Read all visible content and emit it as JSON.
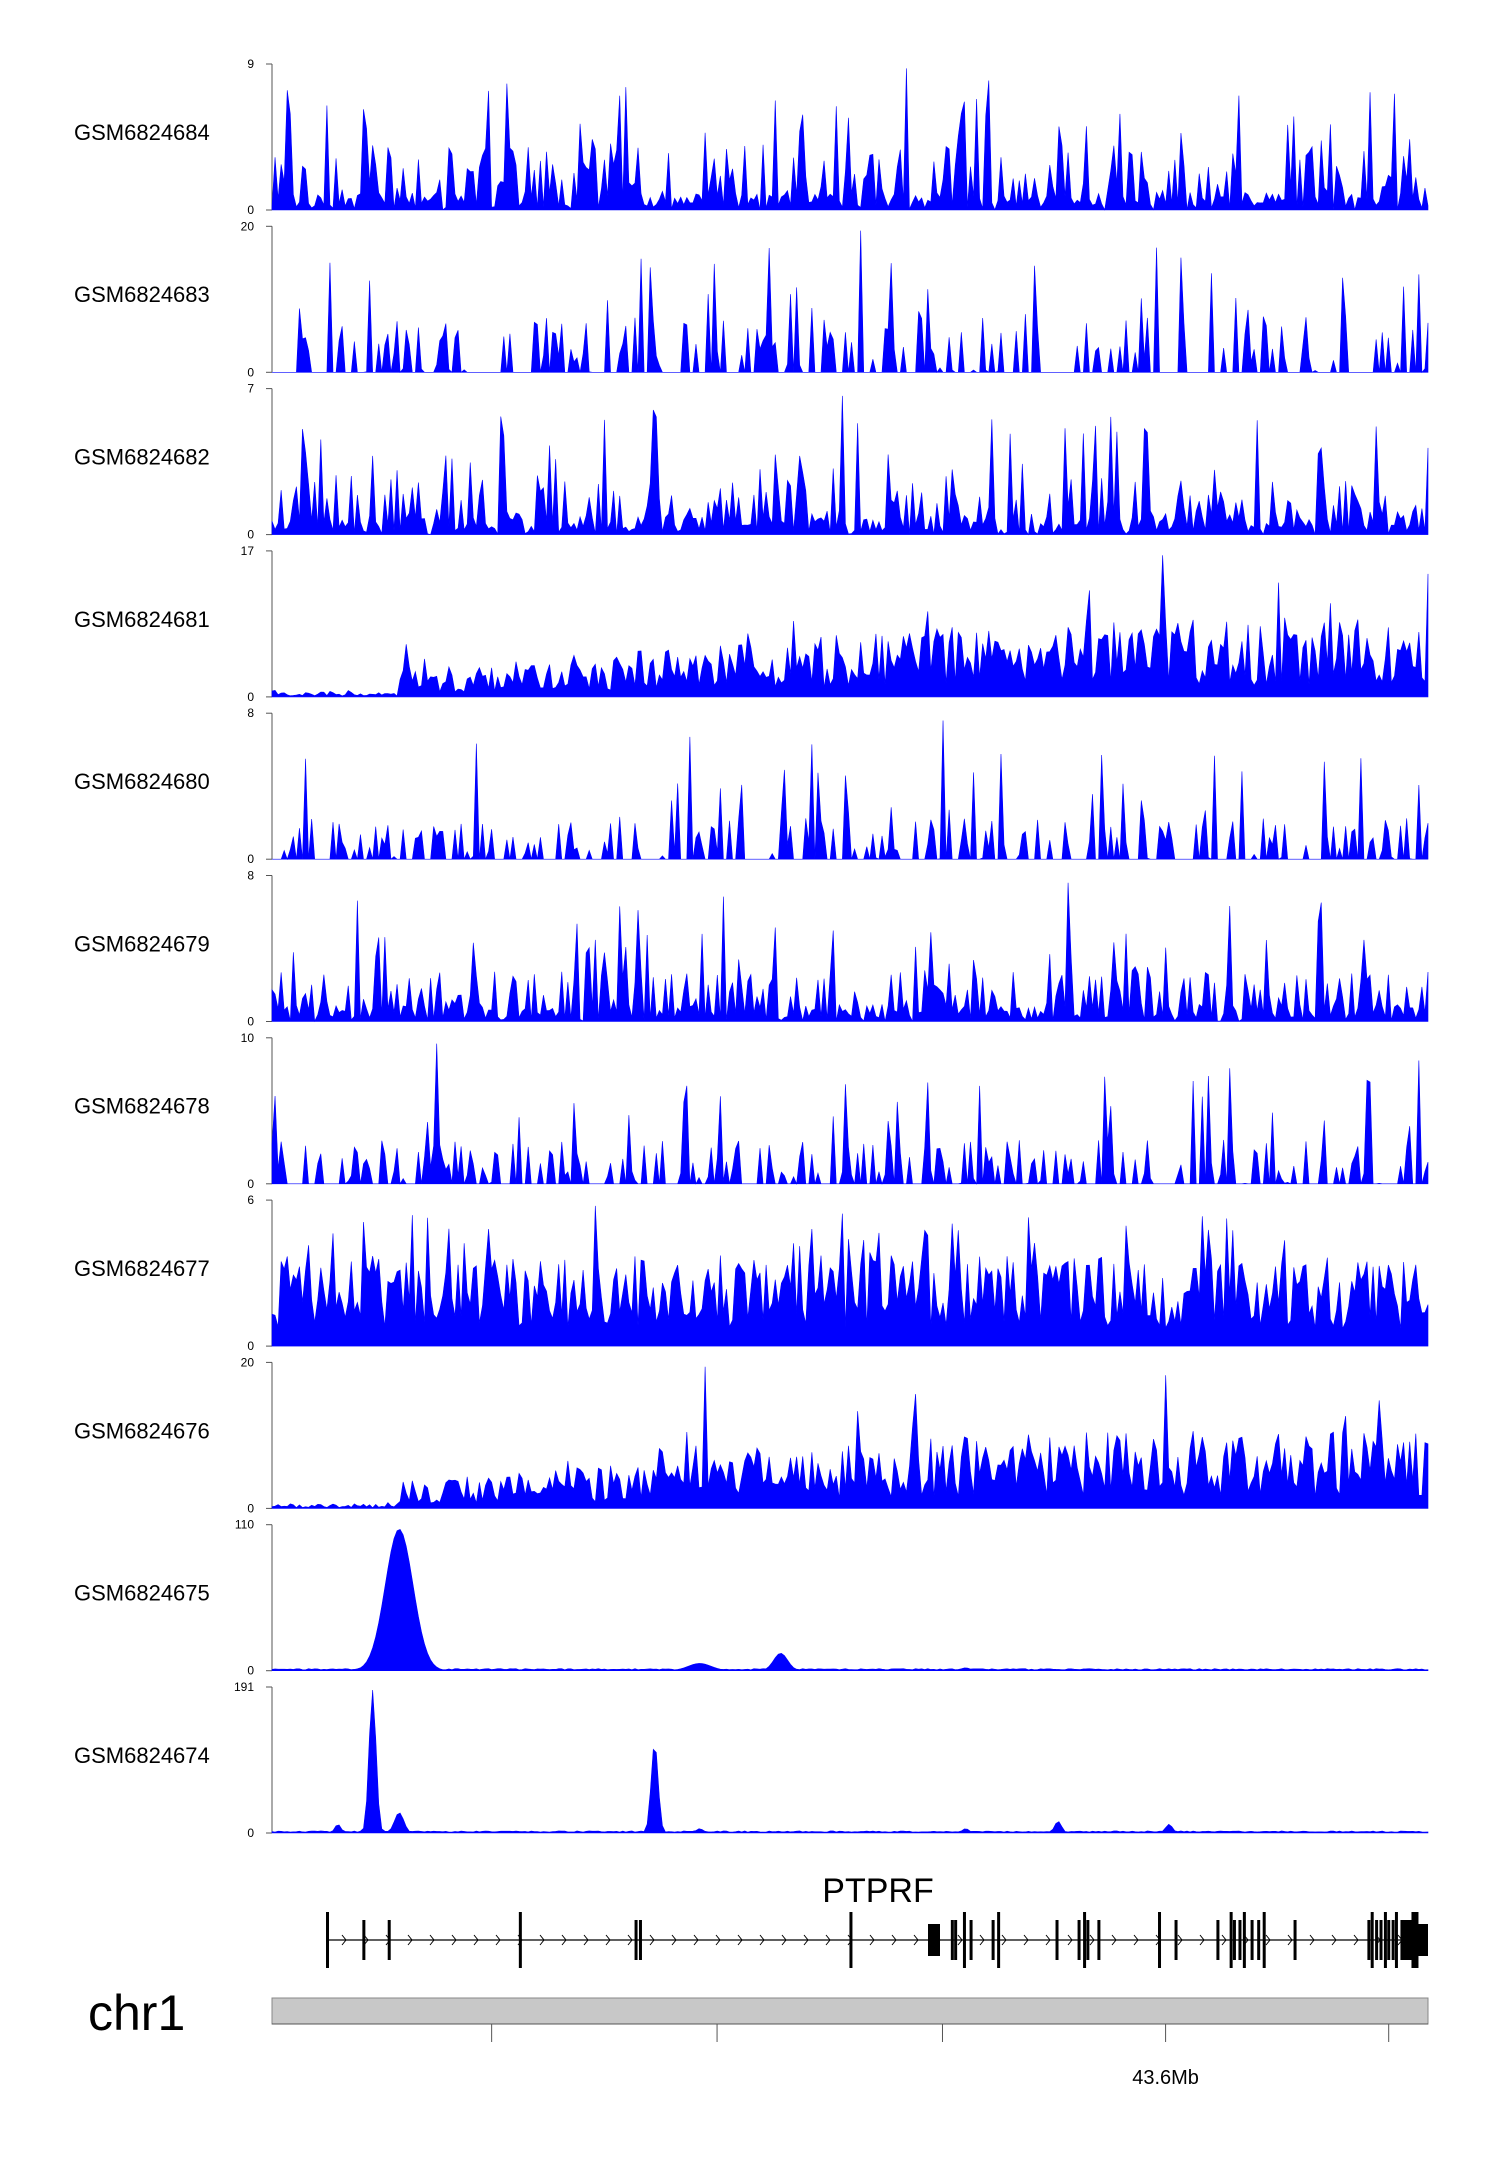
{
  "chart_data": {
    "type": "area",
    "color": "#0000ff",
    "chromosome": "chr1",
    "gene": {
      "name": "PTPRF",
      "exon_fractions": [
        0.0,
        0.033,
        0.056,
        0.175,
        0.28,
        0.284,
        0.475,
        0.567,
        0.57,
        0.578,
        0.584,
        0.604,
        0.609,
        0.662,
        0.682,
        0.687,
        0.69,
        0.7,
        0.755,
        0.77,
        0.808,
        0.82,
        0.823,
        0.828,
        0.832,
        0.839,
        0.845,
        0.85,
        0.878,
        0.945,
        0.948,
        0.952,
        0.956,
        0.96,
        0.963,
        0.967,
        0.97,
        0.975,
        0.98,
        0.985
      ]
    },
    "x_axis": {
      "major_tick_label": "43.6Mb",
      "tick_fractions": [
        0.19,
        0.385,
        0.58,
        0.773,
        0.966
      ],
      "labeled_tick_index": 3
    },
    "tracks": [
      {
        "name": "GSM6824684",
        "ymax": 9,
        "pattern": "spiky",
        "level": 0.45,
        "peak": 0.97
      },
      {
        "name": "GSM6824683",
        "ymax": 20,
        "pattern": "sparse",
        "level": 0.38,
        "peak": 0.97
      },
      {
        "name": "GSM6824682",
        "ymax": 7,
        "pattern": "spiky",
        "level": 0.38,
        "peak": 0.95
      },
      {
        "name": "GSM6824681",
        "ymax": 17,
        "pattern": "ramp",
        "level": 0.45,
        "peak": 0.97
      },
      {
        "name": "GSM6824680",
        "ymax": 8,
        "pattern": "sparse",
        "level": 0.28,
        "peak": 0.95
      },
      {
        "name": "GSM6824679",
        "ymax": 8,
        "pattern": "spiky",
        "level": 0.35,
        "peak": 0.95
      },
      {
        "name": "GSM6824678",
        "ymax": 10,
        "pattern": "sparse",
        "level": 0.3,
        "peak": 0.96
      },
      {
        "name": "GSM6824677",
        "ymax": 6,
        "pattern": "dense",
        "level": 0.5,
        "peak": 0.96
      },
      {
        "name": "GSM6824676",
        "ymax": 20,
        "pattern": "ramp",
        "level": 0.45,
        "peak": 0.97
      },
      {
        "name": "GSM6824675",
        "ymax": 110,
        "pattern": "peaks",
        "peaks": [
          [
            0.11,
            0.97,
            0.012
          ],
          [
            0.37,
            0.05,
            0.01
          ],
          [
            0.44,
            0.12,
            0.006
          ],
          [
            0.6,
            0.02,
            0.004
          ]
        ]
      },
      {
        "name": "GSM6824674",
        "ymax": 191,
        "pattern": "peaks",
        "peaks": [
          [
            0.087,
            0.98,
            0.003
          ],
          [
            0.11,
            0.14,
            0.004
          ],
          [
            0.331,
            0.62,
            0.003
          ],
          [
            0.057,
            0.06,
            0.002
          ],
          [
            0.68,
            0.08,
            0.003
          ],
          [
            0.776,
            0.06,
            0.003
          ],
          [
            0.37,
            0.03,
            0.003
          ],
          [
            0.6,
            0.03,
            0.003
          ]
        ]
      }
    ]
  }
}
